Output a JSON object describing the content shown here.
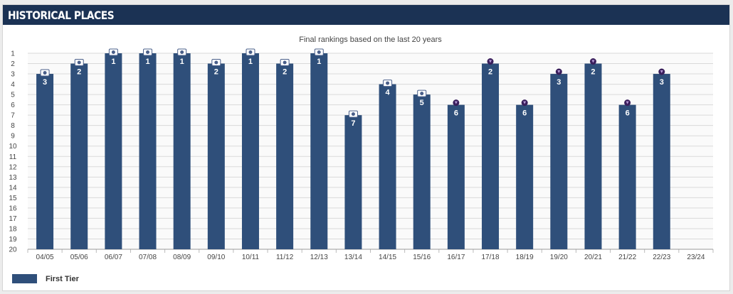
{
  "header": {
    "title": "HISTORICAL PLACES"
  },
  "legend": {
    "first_tier_label": "First Tier"
  },
  "colors": {
    "bar": "#2f4f7a",
    "header_bg": "#1b3254",
    "grid": "#d9d9d9",
    "medal_dark": "#3a1f5c"
  },
  "chart_data": {
    "type": "bar",
    "title": "Final rankings based on the last 20 years",
    "xlabel": "",
    "ylabel": "",
    "y_inverted": true,
    "ylim": [
      1,
      20
    ],
    "y_ticks": [
      "1",
      "2",
      "3",
      "4",
      "5",
      "6",
      "7",
      "8",
      "9",
      "10",
      "11",
      "12",
      "13",
      "14",
      "15",
      "16",
      "17",
      "18",
      "19",
      "20"
    ],
    "grid": true,
    "legend_position": "bottom-left",
    "categories": [
      "04/05",
      "05/06",
      "06/07",
      "07/08",
      "08/09",
      "09/10",
      "10/11",
      "11/12",
      "12/13",
      "13/14",
      "14/15",
      "15/16",
      "16/17",
      "17/18",
      "18/19",
      "19/20",
      "20/21",
      "21/22",
      "22/23",
      "23/24"
    ],
    "series": [
      {
        "name": "First Tier",
        "values": [
          3,
          2,
          1,
          1,
          1,
          2,
          1,
          2,
          1,
          7,
          4,
          5,
          6,
          2,
          6,
          3,
          2,
          6,
          3,
          null
        ],
        "labels": [
          "3",
          "2",
          "1",
          "1",
          "1",
          "2",
          "1",
          "2",
          "1",
          "7",
          "4",
          "5",
          "6",
          "2",
          "6",
          "3",
          "2",
          "6",
          "3",
          ""
        ],
        "icons": [
          "league-badge-icon",
          "league-badge-icon",
          "league-badge-icon",
          "league-badge-icon",
          "league-badge-icon",
          "league-badge-icon",
          "league-badge-icon",
          "league-badge-icon",
          "league-badge-icon",
          "league-badge-icon",
          "league-badge-icon",
          "league-badge-icon",
          "lion-badge-icon",
          "lion-badge-icon",
          "lion-badge-icon",
          "lion-badge-icon",
          "lion-badge-icon",
          "lion-badge-icon",
          "lion-badge-icon",
          ""
        ]
      }
    ]
  }
}
